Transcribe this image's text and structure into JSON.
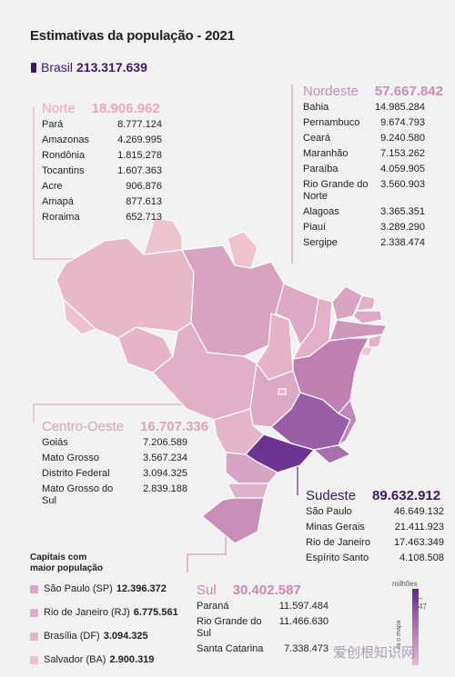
{
  "title": "Estimativas da população - 2021",
  "brasil": {
    "label": "Brasil",
    "value": "213.317.639",
    "color": "#3e1863"
  },
  "norte": {
    "name": "Norte",
    "total": "18.906.962",
    "states": [
      {
        "n": "Pará",
        "v": "8.777.124"
      },
      {
        "n": "Amazonas",
        "v": "4.269.995"
      },
      {
        "n": "Rondônia",
        "v": "1.815.278"
      },
      {
        "n": "Tocantins",
        "v": "1.607.363"
      },
      {
        "n": "Acre",
        "v": "906.876"
      },
      {
        "n": "Amapá",
        "v": "877.613"
      },
      {
        "n": "Roraima",
        "v": "652.713"
      }
    ]
  },
  "nordeste": {
    "name": "Nordeste",
    "total": "57.667.842",
    "states": [
      {
        "n": "Bahia",
        "v": "14.985.284"
      },
      {
        "n": "Pernambuco",
        "v": "9.674.793"
      },
      {
        "n": "Ceará",
        "v": "9.240.580"
      },
      {
        "n": "Maranhão",
        "v": "7.153.262"
      },
      {
        "n": "Paraíba",
        "v": "4.059.905"
      },
      {
        "n": "Rio Grande do Norte",
        "v": "3.560.903"
      },
      {
        "n": "Alagoas",
        "v": "3.365.351"
      },
      {
        "n": "Piauí",
        "v": "3.289.290"
      },
      {
        "n": "Sergipe",
        "v": "2.338.474"
      }
    ]
  },
  "centro_oeste": {
    "name": "Centro-Oeste",
    "total": "16.707.336",
    "states": [
      {
        "n": "Goiás",
        "v": "7.206.589"
      },
      {
        "n": "Mato Grosso",
        "v": "3.567.234"
      },
      {
        "n": "Distrito Federal",
        "v": "3.094.325"
      },
      {
        "n": "Mato Grosso do Sul",
        "v": "2.839.188"
      }
    ]
  },
  "sudeste": {
    "name": "Sudeste",
    "total": "89.632.912",
    "states": [
      {
        "n": "São Paulo",
        "v": "46.649.132"
      },
      {
        "n": "Minas Gerais",
        "v": "21.411.923"
      },
      {
        "n": "Rio de Janeiro",
        "v": "17.463.349"
      },
      {
        "n": "Espírito Santo",
        "v": "4.108.508"
      }
    ]
  },
  "sul": {
    "name": "Sul",
    "total": "30.402.587",
    "states": [
      {
        "n": "Paraná",
        "v": "11.597.484"
      },
      {
        "n": "Rio Grande do Sul",
        "v": "11.466.630"
      },
      {
        "n": "Santa Catarina",
        "v": "7.338.473"
      }
    ]
  },
  "capitais": {
    "title_line1": "Capitais com",
    "title_line2": "maior população",
    "items": [
      {
        "label": "São Paulo (SP)",
        "value": "12.396.372",
        "color": "#d7a8c8"
      },
      {
        "label": "Rio de Janeiro (RJ)",
        "value": "6.775.561",
        "color": "#dcb0cc"
      },
      {
        "label": "Brasília (DF)",
        "value": "3.094.325",
        "color": "#e2b6cc"
      },
      {
        "label": "Salvador (BA)",
        "value": "2.900.319",
        "color": "#ebbfcf"
      }
    ]
  },
  "legend": {
    "unit": "milhões",
    "tick": "47",
    "vertical_text": "ra o mapa"
  },
  "watermark": "爱创根知识网"
}
